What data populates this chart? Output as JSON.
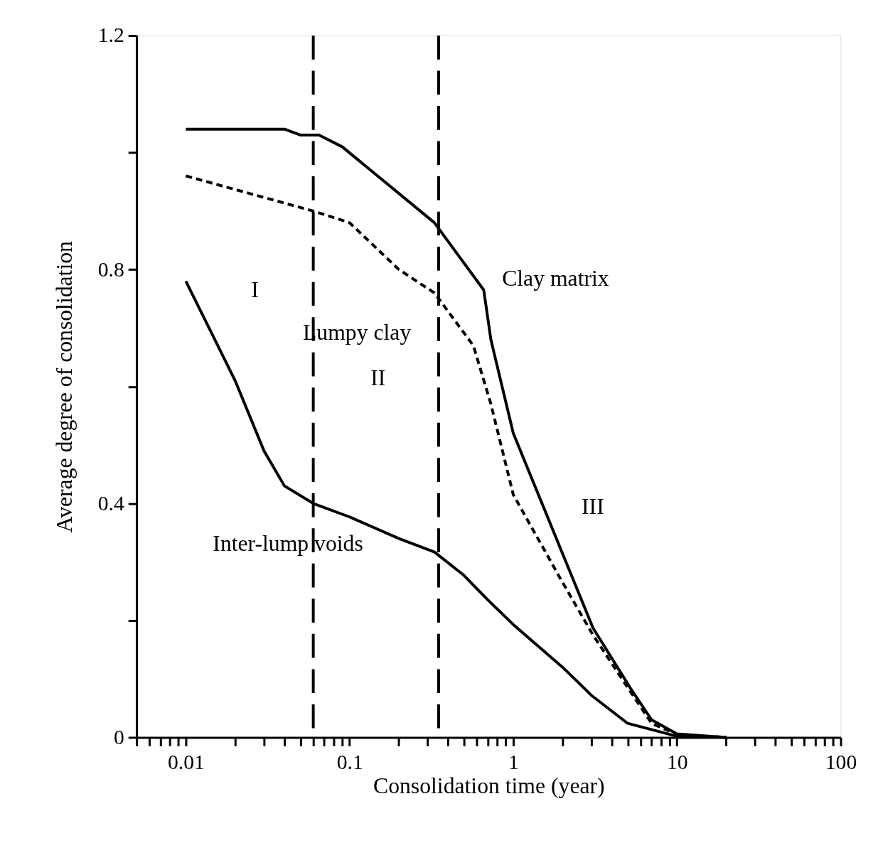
{
  "chart_data": {
    "type": "line",
    "xlabel": "Consolidation time (year)",
    "ylabel": "Average degree of consolidation",
    "xlim": [
      0.005,
      100
    ],
    "ylim": [
      0,
      1.2
    ],
    "log": "x",
    "grid": false,
    "marker": "none",
    "xticks": [
      {
        "value": 0.005,
        "label": null
      },
      {
        "value": 0.006,
        "label": null
      },
      {
        "value": 0.007,
        "label": null
      },
      {
        "value": 0.008,
        "label": null
      },
      {
        "value": 0.009,
        "label": null
      },
      0.01,
      {
        "value": 0.02,
        "label": null
      },
      {
        "value": 0.03,
        "label": null
      },
      {
        "value": 0.04,
        "label": null
      },
      {
        "value": 0.05,
        "label": null
      },
      {
        "value": 0.06,
        "label": null
      },
      {
        "value": 0.07,
        "label": null
      },
      {
        "value": 0.08,
        "label": null
      },
      {
        "value": 0.09,
        "label": null
      },
      0.1,
      {
        "value": 0.2,
        "label": null
      },
      {
        "value": 0.3,
        "label": null
      },
      {
        "value": 0.4,
        "label": null
      },
      {
        "value": 0.5,
        "label": null
      },
      {
        "value": 0.6,
        "label": null
      },
      {
        "value": 0.7,
        "label": null
      },
      {
        "value": 0.8,
        "label": null
      },
      {
        "value": 0.9,
        "label": null
      },
      1,
      {
        "value": 2,
        "label": null
      },
      {
        "value": 3,
        "label": null
      },
      {
        "value": 4,
        "label": null
      },
      {
        "value": 5,
        "label": null
      },
      {
        "value": 6,
        "label": null
      },
      {
        "value": 7,
        "label": null
      },
      {
        "value": 8,
        "label": null
      },
      {
        "value": 9,
        "label": null
      },
      10,
      {
        "value": 20,
        "label": null
      },
      {
        "value": 30,
        "label": null
      },
      {
        "value": 40,
        "label": null
      },
      {
        "value": 50,
        "label": null
      },
      {
        "value": 60,
        "label": null
      },
      {
        "value": 70,
        "label": null
      },
      {
        "value": 80,
        "label": null
      },
      {
        "value": 90,
        "label": null
      },
      100
    ],
    "yticks": [
      0,
      {
        "value": 0.2,
        "label": null
      },
      0.4,
      {
        "value": 0.6,
        "label": null
      },
      0.8,
      {
        "value": 1.0,
        "label": null
      },
      1.2
    ],
    "series": [
      {
        "name": "Clay matrix",
        "color": "#000000",
        "line_style": "solid",
        "x": [
          0.01,
          0.04,
          0.05,
          0.065,
          0.09,
          0.33,
          0.66,
          0.73,
          1,
          3.07,
          5.2,
          7,
          10,
          20
        ],
        "values": [
          1.04,
          1.04,
          1.03,
          1.03,
          1.01,
          0.88,
          0.765,
          0.68,
          0.52,
          0.187,
          0.084,
          0.03,
          0.006,
          0
        ]
      },
      {
        "name": "Lumpy clay",
        "color": "#000000",
        "line_style": "dashed",
        "x": [
          0.01,
          0.06,
          0.1,
          0.2,
          0.33,
          0.57,
          0.73,
          1,
          2,
          3.07,
          5.2,
          7,
          10,
          20
        ],
        "values": [
          0.96,
          0.9,
          0.88,
          0.8,
          0.76,
          0.67,
          0.57,
          0.415,
          0.265,
          0.175,
          0.078,
          0.024,
          0.005,
          0
        ]
      },
      {
        "name": "Inter-lump voids",
        "color": "#000000",
        "line_style": "solid",
        "x": [
          0.01,
          0.02,
          0.03,
          0.04,
          0.06,
          0.1,
          0.2,
          0.33,
          0.5,
          0.7,
          1,
          2,
          3,
          5,
          10,
          20
        ],
        "values": [
          0.78,
          0.61,
          0.49,
          0.43,
          0.4,
          0.377,
          0.34,
          0.317,
          0.277,
          0.235,
          0.193,
          0.12,
          0.072,
          0.024,
          0.002,
          0
        ]
      }
    ],
    "ref_lines": [
      {
        "axis": "x",
        "value": 0.06,
        "color": "#000000",
        "line_style": "dashed"
      },
      {
        "axis": "x",
        "value": 0.35,
        "color": "#000000",
        "line_style": "dashed"
      }
    ],
    "annotations": [
      "I",
      "II",
      "III"
    ]
  }
}
